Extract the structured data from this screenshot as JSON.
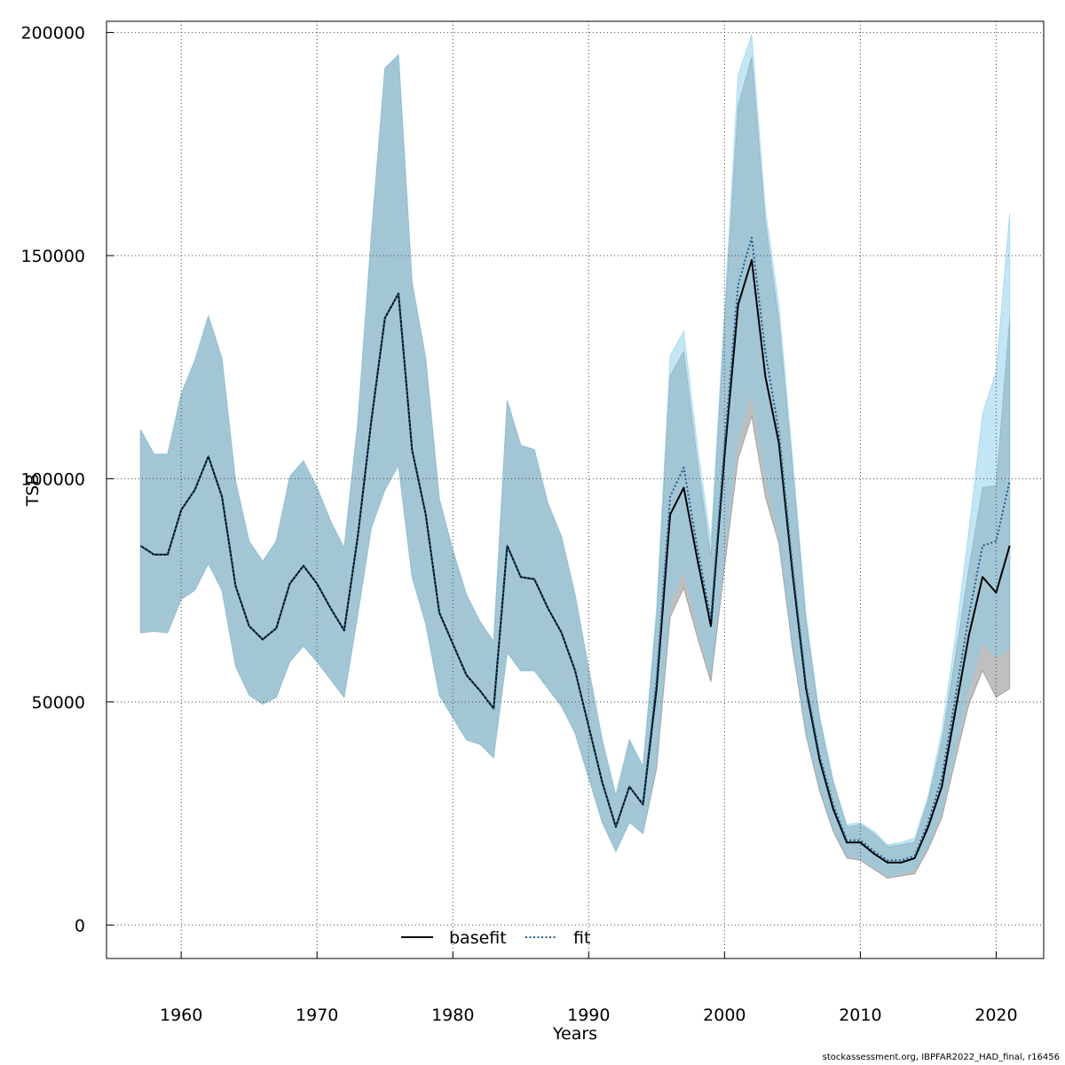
{
  "chart_data": {
    "type": "line",
    "xlabel": "Years",
    "ylabel": "TSB",
    "xlim": [
      1954.5,
      2023.5
    ],
    "ylim": [
      -7500,
      202500
    ],
    "x_ticks": [
      1960,
      1970,
      1980,
      1990,
      2000,
      2010,
      2020
    ],
    "y_ticks": [
      0,
      50000,
      100000,
      150000,
      200000
    ],
    "x_tick_labels": [
      "1960",
      "1970",
      "1980",
      "1990",
      "2000",
      "2010",
      "2020"
    ],
    "y_tick_labels": [
      "0",
      "50000",
      "100000",
      "150000",
      "200000"
    ],
    "grid": true,
    "legend_position": "bottom-center",
    "x": [
      1957,
      1958,
      1959,
      1960,
      1961,
      1962,
      1963,
      1964,
      1965,
      1966,
      1967,
      1968,
      1969,
      1970,
      1971,
      1972,
      1973,
      1974,
      1975,
      1976,
      1977,
      1978,
      1979,
      1980,
      1981,
      1982,
      1983,
      1984,
      1985,
      1986,
      1987,
      1988,
      1989,
      1990,
      1991,
      1992,
      1993,
      1994,
      1995,
      1996,
      1997,
      1998,
      1999,
      2000,
      2001,
      2002,
      2003,
      2004,
      2005,
      2006,
      2007,
      2008,
      2009,
      2010,
      2011,
      2012,
      2013,
      2014,
      2015,
      2016,
      2017,
      2018,
      2019,
      2020,
      2021
    ],
    "series": [
      {
        "name": "basefit",
        "color": "#000000",
        "band_color": "#808080",
        "dash": "solid",
        "values": [
          85000,
          83000,
          83000,
          93000,
          97500,
          105000,
          96000,
          76000,
          67000,
          64000,
          66500,
          76500,
          80500,
          76500,
          71000,
          66000,
          87000,
          113000,
          136000,
          141500,
          106500,
          92000,
          70000,
          63000,
          56000,
          52500,
          48500,
          85000,
          78000,
          77500,
          71000,
          65500,
          57000,
          44500,
          32000,
          22000,
          31000,
          27000,
          53000,
          92000,
          98000,
          82000,
          67000,
          105000,
          139000,
          149000,
          123000,
          108000,
          79000,
          53000,
          37000,
          26000,
          18500,
          18500,
          16000,
          14000,
          14000,
          15000,
          22000,
          31000,
          48000,
          65000,
          78000,
          74500,
          85000
        ],
        "lower": [
          65500,
          65800,
          65500,
          73000,
          75000,
          81000,
          75000,
          58000,
          51500,
          49500,
          51000,
          59000,
          62500,
          59000,
          55000,
          51000,
          69500,
          89000,
          97500,
          103000,
          78000,
          67500,
          51500,
          46500,
          41500,
          40500,
          37500,
          61000,
          57000,
          57000,
          53000,
          49000,
          43000,
          33000,
          23000,
          16500,
          23000,
          20500,
          35000,
          69000,
          75500,
          64500,
          54500,
          80000,
          104500,
          114000,
          96000,
          85500,
          62000,
          42500,
          30000,
          21000,
          15000,
          14500,
          12500,
          10500,
          11000,
          11500,
          17000,
          24000,
          37000,
          49500,
          57000,
          51000,
          53000
        ],
        "upper": [
          111000,
          105500,
          105500,
          119000,
          126500,
          136500,
          127000,
          99500,
          86000,
          81500,
          86000,
          100500,
          104000,
          98000,
          90500,
          84500,
          112500,
          154500,
          192000,
          195000,
          144000,
          127000,
          95500,
          84000,
          74000,
          68000,
          63500,
          117500,
          107500,
          106500,
          94500,
          87000,
          74000,
          57500,
          41500,
          29000,
          41500,
          35500,
          69000,
          123000,
          128500,
          104000,
          82500,
          134500,
          183500,
          194500,
          157500,
          135500,
          102500,
          68000,
          46000,
          32000,
          22000,
          22500,
          20500,
          17500,
          18000,
          18500,
          28000,
          41000,
          60000,
          80000,
          98000,
          98500,
          136000
        ]
      },
      {
        "name": "fit",
        "color": "#1a5c8c",
        "band_color": "#87ceeb",
        "dash": "dotted",
        "values": [
          85000,
          83000,
          83000,
          93000,
          97500,
          105000,
          96000,
          76000,
          67000,
          64000,
          66500,
          76500,
          80500,
          76500,
          71000,
          66000,
          87000,
          113000,
          136000,
          141500,
          106500,
          92000,
          70000,
          63000,
          56000,
          52500,
          48500,
          85000,
          78000,
          77500,
          71000,
          65500,
          57000,
          44500,
          32000,
          22000,
          31000,
          27000,
          55000,
          96000,
          102500,
          84500,
          68500,
          107500,
          143500,
          154000,
          128500,
          110500,
          80500,
          54000,
          38000,
          27000,
          19000,
          19000,
          16500,
          14500,
          14500,
          15500,
          23000,
          33000,
          51000,
          69500,
          85000,
          86000,
          99500
        ],
        "lower": [
          65500,
          65800,
          65500,
          73000,
          75000,
          81000,
          75000,
          58000,
          51500,
          49500,
          51000,
          59000,
          62500,
          59000,
          55000,
          51000,
          69500,
          89000,
          97500,
          103000,
          78000,
          67500,
          51500,
          46500,
          41500,
          40500,
          37500,
          61000,
          57000,
          57000,
          53000,
          49000,
          43000,
          33000,
          23000,
          16500,
          23000,
          20500,
          37000,
          72500,
          79500,
          67000,
          56000,
          84000,
          109500,
          119500,
          101000,
          87500,
          63500,
          43500,
          31000,
          22000,
          15500,
          15000,
          13000,
          11000,
          11500,
          12500,
          18000,
          25500,
          39500,
          53000,
          63500,
          60000,
          62000
        ],
        "upper": [
          111000,
          105500,
          105500,
          119000,
          126500,
          136500,
          127000,
          99500,
          86000,
          81500,
          86000,
          100500,
          104000,
          98000,
          90500,
          84500,
          112500,
          154500,
          192000,
          195000,
          144000,
          127000,
          95500,
          84000,
          74000,
          68000,
          63500,
          117500,
          107500,
          106500,
          94500,
          87000,
          74000,
          57500,
          41500,
          29000,
          41500,
          35500,
          71000,
          127500,
          133000,
          107500,
          86000,
          137500,
          190500,
          199500,
          160500,
          139000,
          105000,
          69500,
          47000,
          32500,
          22500,
          23000,
          21000,
          18000,
          18500,
          19500,
          29000,
          43500,
          64500,
          88500,
          114500,
          124000,
          159500
        ]
      }
    ]
  },
  "footer": "stockassessment.org, IBPFAR2022_HAD_final, r16456"
}
